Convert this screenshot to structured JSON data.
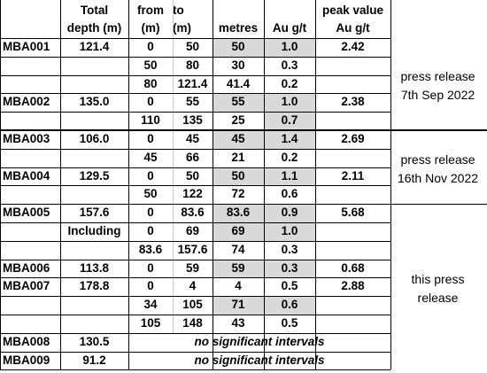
{
  "headers": {
    "total_depth": [
      "Total",
      "depth (m)"
    ],
    "from": [
      "from",
      "(m)"
    ],
    "to": [
      "to",
      "(m)"
    ],
    "metres": "metres",
    "au": "Au g/t",
    "peak": [
      "peak value",
      "Au g/t"
    ]
  },
  "rows": [
    {
      "hole": "MBA001",
      "depth": "121.4",
      "from": "0",
      "to": "50",
      "metres": "50",
      "au": "1.0",
      "peak": "2.42",
      "hl_m": true,
      "hl_au": true
    },
    {
      "hole": "",
      "depth": "",
      "from": "50",
      "to": "80",
      "metres": "30",
      "au": "0.3",
      "peak": "",
      "hl_m": false,
      "hl_au": false
    },
    {
      "hole": "",
      "depth": "",
      "from": "80",
      "to": "121.4",
      "metres": "41.4",
      "au": "0.2",
      "peak": "",
      "hl_m": false,
      "hl_au": false
    },
    {
      "hole": "MBA002",
      "depth": "135.0",
      "from": "0",
      "to": "55",
      "metres": "55",
      "au": "1.0",
      "peak": "2.38",
      "hl_m": true,
      "hl_au": true
    },
    {
      "hole": "",
      "depth": "",
      "from": "110",
      "to": "135",
      "metres": "25",
      "au": "0.7",
      "peak": "",
      "hl_m": false,
      "hl_au": true
    },
    {
      "hole": "MBA003",
      "depth": "106.0",
      "from": "0",
      "to": "45",
      "metres": "45",
      "au": "1.4",
      "peak": "2.69",
      "hl_m": true,
      "hl_au": true
    },
    {
      "hole": "",
      "depth": "",
      "from": "45",
      "to": "66",
      "metres": "21",
      "au": "0.2",
      "peak": "",
      "hl_m": false,
      "hl_au": false
    },
    {
      "hole": "MBA004",
      "depth": "129.5",
      "from": "0",
      "to": "50",
      "metres": "50",
      "au": "1.1",
      "peak": "2.11",
      "hl_m": true,
      "hl_au": true
    },
    {
      "hole": "",
      "depth": "",
      "from": "50",
      "to": "122",
      "metres": "72",
      "au": "0.6",
      "peak": "",
      "hl_m": false,
      "hl_au": false
    },
    {
      "hole": "MBA005",
      "depth": "157.6",
      "from": "0",
      "to": "83.6",
      "metres": "83.6",
      "au": "0.9",
      "peak": "5.68",
      "hl_m": true,
      "hl_au": true
    },
    {
      "hole": "",
      "depth": "Including",
      "from": "0",
      "to": "69",
      "metres": "69",
      "au": "1.0",
      "peak": "",
      "hl_m": true,
      "hl_au": true
    },
    {
      "hole": "",
      "depth": "",
      "from": "83.6",
      "to": "157.6",
      "metres": "74",
      "au": "0.3",
      "peak": "",
      "hl_m": false,
      "hl_au": false
    },
    {
      "hole": "MBA006",
      "depth": "113.8",
      "from": "0",
      "to": "59",
      "metres": "59",
      "au": "0.3",
      "peak": "0.68",
      "hl_m": true,
      "hl_au": true
    },
    {
      "hole": "MBA007",
      "depth": "178.8",
      "from": "0",
      "to": "4",
      "metres": "4",
      "au": "0.5",
      "peak": "2.88",
      "hl_m": false,
      "hl_au": false
    },
    {
      "hole": "",
      "depth": "",
      "from": "34",
      "to": "105",
      "metres": "71",
      "au": "0.6",
      "peak": "",
      "hl_m": true,
      "hl_au": true
    },
    {
      "hole": "",
      "depth": "",
      "from": "105",
      "to": "148",
      "metres": "43",
      "au": "0.5",
      "peak": "",
      "hl_m": false,
      "hl_au": false
    }
  ],
  "nsi_rows": [
    {
      "hole": "MBA008",
      "depth": "130.5",
      "note": "no significant intervals"
    },
    {
      "hole": "MBA009",
      "depth": "91.2",
      "note": "no significant intervals"
    }
  ],
  "press": {
    "g1": [
      "press release",
      "7th Sep 2022"
    ],
    "g2": [
      "press release",
      "16th Nov 2022"
    ],
    "g3": [
      "this press",
      "release"
    ]
  }
}
